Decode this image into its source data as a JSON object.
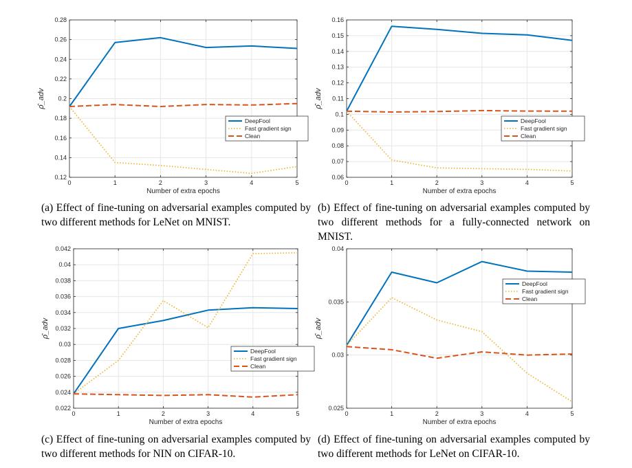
{
  "shared": {
    "xlabel": "Number of extra epochs",
    "ylabel": "ρ̂_adv",
    "legend": [
      "DeepFool",
      "Fast gradient sign",
      "Clean"
    ],
    "colors": {
      "deepfool": "#0072bd",
      "fgs": "#edb120",
      "clean": "#d95319"
    }
  },
  "captions": [
    "(a) Effect of fine-tuning on adversarial examples computed by two different methods for LeNet on MNIST.",
    "(b) Effect of fine-tuning on adversarial examples computed by two different methods for a fully-connected network on MNIST.",
    "(c) Effect of fine-tuning on adversarial examples computed by two different methods for NIN on CIFAR-10.",
    "(d) Effect of fine-tuning on adversarial examples computed by two different methods for LeNet on CIFAR-10."
  ],
  "chart_data": [
    {
      "type": "line",
      "xlabel": "Number of extra epochs",
      "ylabel": "ρ̂_adv",
      "x": [
        0,
        1,
        2,
        3,
        4,
        5
      ],
      "xlim": [
        0,
        5
      ],
      "ylim": [
        0.12,
        0.28
      ],
      "yticks": [
        "0.12",
        "0.14",
        "0.16",
        "0.18",
        "0.2",
        "0.22",
        "0.24",
        "0.26",
        "0.28"
      ],
      "grid": true,
      "legend_position": "right-middle",
      "series": [
        {
          "name": "DeepFool",
          "style": "solid",
          "values": [
            0.192,
            0.257,
            0.262,
            0.252,
            0.2535,
            0.251
          ]
        },
        {
          "name": "Fast gradient sign",
          "style": "dotted",
          "values": [
            0.192,
            0.135,
            0.132,
            0.128,
            0.124,
            0.131
          ]
        },
        {
          "name": "Clean",
          "style": "dashed",
          "values": [
            0.192,
            0.194,
            0.192,
            0.194,
            0.1935,
            0.195
          ]
        }
      ]
    },
    {
      "type": "line",
      "xlabel": "Number of extra epochs",
      "ylabel": "ρ̂_adv",
      "x": [
        0,
        1,
        2,
        3,
        4,
        5
      ],
      "xlim": [
        0,
        5
      ],
      "ylim": [
        0.06,
        0.16
      ],
      "yticks": [
        "0.06",
        "0.07",
        "0.08",
        "0.09",
        "0.1",
        "0.11",
        "0.12",
        "0.13",
        "0.14",
        "0.15",
        "0.16"
      ],
      "grid": true,
      "legend_position": "right-middle",
      "series": [
        {
          "name": "DeepFool",
          "style": "solid",
          "values": [
            0.102,
            0.156,
            0.154,
            0.1515,
            0.1505,
            0.147
          ]
        },
        {
          "name": "Fast gradient sign",
          "style": "dotted",
          "values": [
            0.102,
            0.071,
            0.066,
            0.0655,
            0.065,
            0.064
          ]
        },
        {
          "name": "Clean",
          "style": "dashed",
          "values": [
            0.102,
            0.1015,
            0.1018,
            0.1024,
            0.1021,
            0.102
          ]
        }
      ]
    },
    {
      "type": "line",
      "xlabel": "Number of extra epochs",
      "ylabel": "ρ̂_adv",
      "x": [
        0,
        1,
        2,
        3,
        4,
        5
      ],
      "xlim": [
        0,
        5
      ],
      "ylim": [
        0.022,
        0.042
      ],
      "yticks": [
        "0.022",
        "0.024",
        "0.026",
        "0.028",
        "0.03",
        "0.032",
        "0.034",
        "0.036",
        "0.038",
        "0.04",
        "0.042"
      ],
      "grid": true,
      "legend_position": "right-lower",
      "series": [
        {
          "name": "DeepFool",
          "style": "solid",
          "values": [
            0.0238,
            0.032,
            0.033,
            0.0343,
            0.0346,
            0.0345
          ]
        },
        {
          "name": "Fast gradient sign",
          "style": "dotted",
          "values": [
            0.0238,
            0.028,
            0.0355,
            0.0321,
            0.0414,
            0.0415
          ]
        },
        {
          "name": "Clean",
          "style": "dashed",
          "values": [
            0.0238,
            0.0237,
            0.0236,
            0.0237,
            0.0234,
            0.0237
          ]
        }
      ]
    },
    {
      "type": "line",
      "xlabel": "Number of extra epochs",
      "ylabel": "ρ̂_adv",
      "x": [
        0,
        1,
        2,
        3,
        4,
        5
      ],
      "xlim": [
        0,
        5
      ],
      "ylim": [
        0.025,
        0.04
      ],
      "yticks": [
        "0.025",
        "0.03",
        "0.035",
        "0.04"
      ],
      "grid": true,
      "legend_position": "top-right",
      "series": [
        {
          "name": "DeepFool",
          "style": "solid",
          "values": [
            0.0309,
            0.0378,
            0.0368,
            0.0388,
            0.0379,
            0.0378
          ]
        },
        {
          "name": "Fast gradient sign",
          "style": "dotted",
          "values": [
            0.0309,
            0.0354,
            0.0333,
            0.0322,
            0.0283,
            0.0256
          ]
        },
        {
          "name": "Clean",
          "style": "dashed",
          "values": [
            0.0308,
            0.0305,
            0.0297,
            0.0303,
            0.03,
            0.0301
          ]
        }
      ]
    }
  ]
}
